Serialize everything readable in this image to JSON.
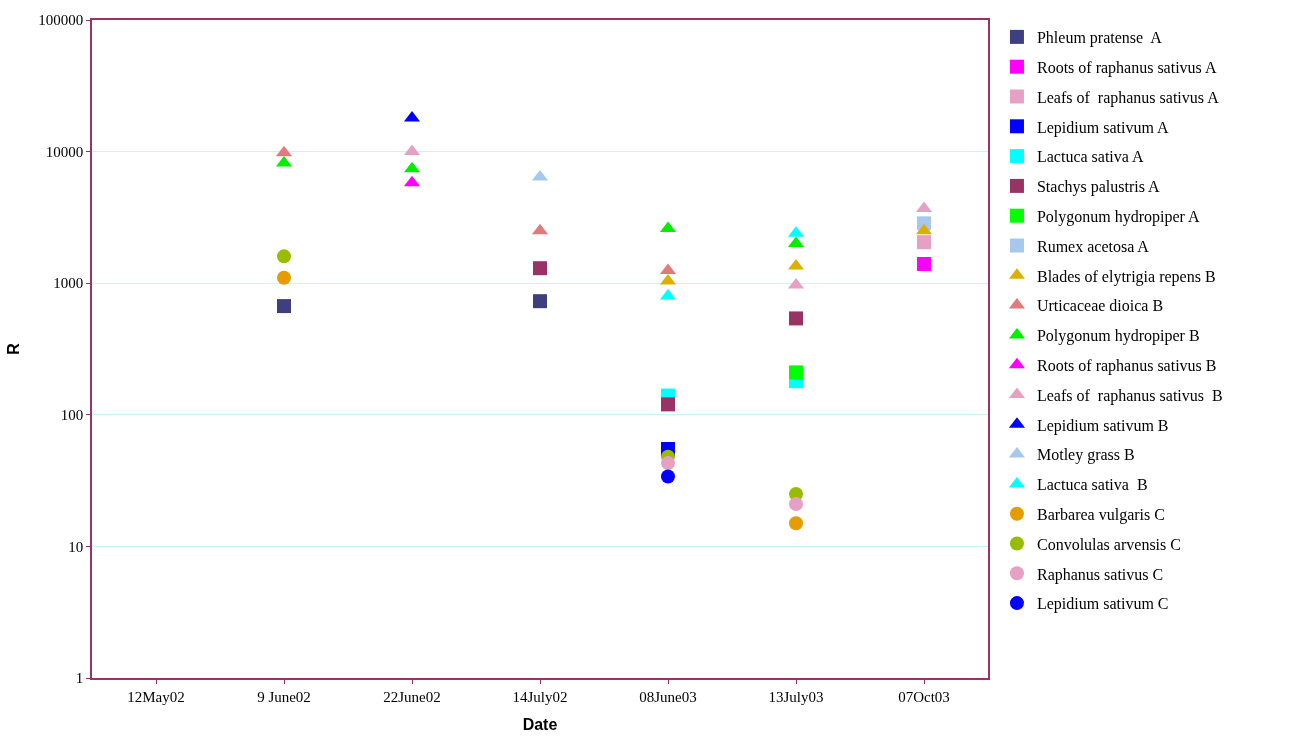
{
  "chart_data": {
    "type": "scatter",
    "xlabel": "Date",
    "ylabel": "R",
    "categories": [
      "12May02",
      "9 June02",
      "22June02",
      "14July02",
      "08June03",
      "13July03",
      "07Oct03"
    ],
    "log": "y",
    "ylim": [
      1,
      100000
    ],
    "yticks": [
      1,
      10,
      100,
      1000,
      10000,
      100000
    ],
    "grid": "y",
    "legend": "right",
    "series": [
      {
        "name": "Phleum pratense  A",
        "color": "#3f3f80",
        "marker": "square",
        "values": [
          null,
          670,
          null,
          730,
          null,
          null,
          null
        ]
      },
      {
        "name": "Roots of raphanus sativus A",
        "color": "#ff00ff",
        "marker": "square",
        "values": [
          null,
          null,
          null,
          null,
          null,
          null,
          1400
        ]
      },
      {
        "name": "Leafs of  raphanus sativus A",
        "color": "#e6a0c4",
        "marker": "square",
        "values": [
          null,
          null,
          null,
          null,
          null,
          null,
          2050
        ]
      },
      {
        "name": "Lepidium sativum A",
        "color": "#0000ff",
        "marker": "square",
        "values": [
          null,
          null,
          null,
          null,
          55,
          null,
          null
        ]
      },
      {
        "name": "Lactuca sativa A",
        "color": "#00ffff",
        "marker": "square",
        "values": [
          null,
          null,
          null,
          null,
          140,
          180,
          null
        ]
      },
      {
        "name": "Stachys palustris A",
        "color": "#993366",
        "marker": "square",
        "values": [
          null,
          null,
          null,
          1300,
          120,
          540,
          null
        ]
      },
      {
        "name": "Polygonum hydropiper A",
        "color": "#00ff00",
        "marker": "square",
        "values": [
          null,
          null,
          null,
          null,
          null,
          210,
          null
        ]
      },
      {
        "name": "Rumex acetosa A",
        "color": "#a6c8ec",
        "marker": "square",
        "values": [
          null,
          null,
          null,
          null,
          null,
          null,
          2850
        ]
      },
      {
        "name": "Blades of elytrigia repens B",
        "color": "#ddb000",
        "marker": "triangle",
        "values": [
          null,
          null,
          null,
          null,
          1040,
          1350,
          2500
        ]
      },
      {
        "name": "Urticaceae dioica B",
        "color": "#e07b7b",
        "marker": "triangle",
        "values": [
          null,
          9800,
          null,
          2500,
          1250,
          null,
          null
        ]
      },
      {
        "name": "Polygonum hydropiper B",
        "color": "#00ee00",
        "marker": "triangle",
        "values": [
          null,
          8200,
          7400,
          null,
          2600,
          2000,
          null
        ]
      },
      {
        "name": "Roots of raphanus sativus B",
        "color": "#ff00ff",
        "marker": "triangle",
        "values": [
          null,
          null,
          5800,
          null,
          null,
          null,
          null
        ]
      },
      {
        "name": "Leafs of  raphanus sativus  B",
        "color": "#e6a0c4",
        "marker": "triangle",
        "values": [
          null,
          null,
          10000,
          null,
          null,
          970,
          3700
        ]
      },
      {
        "name": "Lepidium sativum B",
        "color": "#0000ff",
        "marker": "triangle",
        "values": [
          null,
          null,
          18000,
          null,
          null,
          null,
          null
        ]
      },
      {
        "name": "Motley grass B",
        "color": "#a6c8ec",
        "marker": "triangle",
        "values": [
          null,
          null,
          null,
          6400,
          null,
          null,
          null
        ]
      },
      {
        "name": "Lactuca sativa  B",
        "color": "#00ffff",
        "marker": "triangle",
        "values": [
          null,
          null,
          null,
          null,
          800,
          2400,
          null
        ]
      },
      {
        "name": "Barbarea vulgaris C",
        "color": "#e69b00",
        "marker": "circle",
        "values": [
          null,
          1100,
          null,
          null,
          null,
          15,
          null
        ]
      },
      {
        "name": "Convolulas arvensis C",
        "color": "#99bb00",
        "marker": "circle",
        "values": [
          null,
          1600,
          null,
          null,
          48,
          25,
          null
        ]
      },
      {
        "name": "Raphanus sativus C",
        "color": "#e6a0c4",
        "marker": "circle",
        "values": [
          null,
          null,
          null,
          null,
          43,
          21,
          null
        ]
      },
      {
        "name": "Lepidium sativum C",
        "color": "#0000ff",
        "marker": "circle",
        "values": [
          null,
          null,
          null,
          null,
          34,
          null,
          null
        ]
      }
    ]
  }
}
